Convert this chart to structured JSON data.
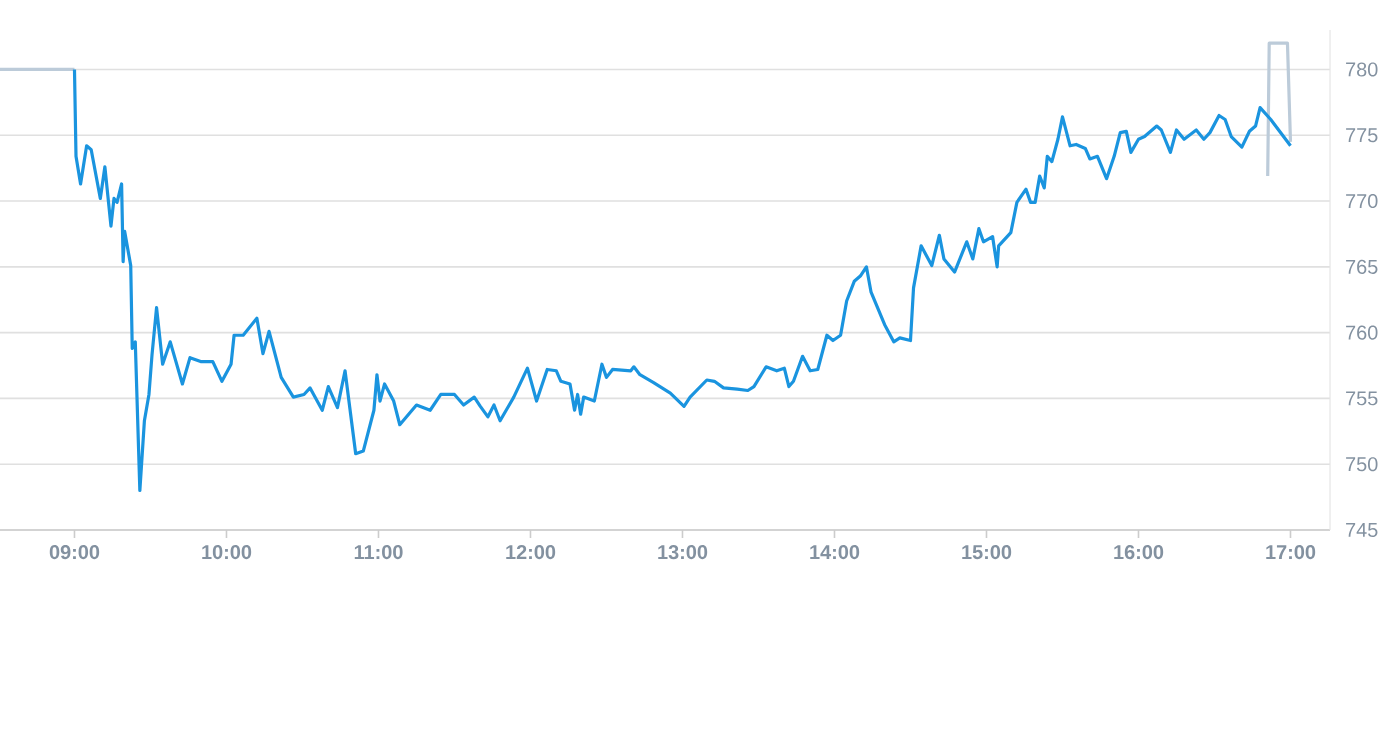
{
  "chart_data": {
    "type": "line",
    "xlim": [
      8.51,
      17.26
    ],
    "ylim": [
      745,
      783
    ],
    "xticks": [
      {
        "value": 9,
        "label": "09:00"
      },
      {
        "value": 10,
        "label": "10:00"
      },
      {
        "value": 11,
        "label": "11:00"
      },
      {
        "value": 12,
        "label": "12:00"
      },
      {
        "value": 13,
        "label": "13:00"
      },
      {
        "value": 14,
        "label": "14:00"
      },
      {
        "value": 15,
        "label": "15:00"
      },
      {
        "value": 16,
        "label": "16:00"
      },
      {
        "value": 17,
        "label": "17:00"
      }
    ],
    "yticks": [
      745,
      750,
      755,
      760,
      765,
      770,
      775,
      780
    ],
    "grid": "y",
    "series": [
      {
        "color": "#bccbd9",
        "x": [
          8.51,
          9.0,
          null,
          16.85,
          16.86,
          16.98,
          17.0
        ],
        "values": [
          780,
          780,
          null,
          771.9,
          782.0,
          782.0,
          774.5
        ]
      },
      {
        "color": "#1a94df",
        "x": [
          9.0,
          9.01,
          9.04,
          9.08,
          9.11,
          9.17,
          9.2,
          9.24,
          9.26,
          9.28,
          9.31,
          9.32,
          9.33,
          9.37,
          9.38,
          9.4,
          9.43,
          9.46,
          9.49,
          9.51,
          9.54,
          9.58,
          9.63,
          9.71,
          9.76,
          9.83,
          9.91,
          9.97,
          10.03,
          10.05,
          10.11,
          10.2,
          10.24,
          10.28,
          10.36,
          10.44,
          10.51,
          10.55,
          10.63,
          10.67,
          10.73,
          10.78,
          10.85,
          10.9,
          10.97,
          10.99,
          11.01,
          11.04,
          11.1,
          11.14,
          11.25,
          11.34,
          11.41,
          11.5,
          11.56,
          11.63,
          11.67,
          11.72,
          11.76,
          11.8,
          11.89,
          11.98,
          12.04,
          12.11,
          12.17,
          12.2,
          12.26,
          12.29,
          12.31,
          12.33,
          12.35,
          12.42,
          12.47,
          12.5,
          12.54,
          12.66,
          12.68,
          12.72,
          12.81,
          12.92,
          13.01,
          13.05,
          13.16,
          13.21,
          13.27,
          13.36,
          13.43,
          13.47,
          13.55,
          13.62,
          13.67,
          13.7,
          13.73,
          13.79,
          13.84,
          13.89,
          13.95,
          13.99,
          14.04,
          14.08,
          14.13,
          14.17,
          14.21,
          14.24,
          14.33,
          14.39,
          14.43,
          14.5,
          14.52,
          14.57,
          14.64,
          14.69,
          14.72,
          14.79,
          14.87,
          14.91,
          14.95,
          14.98,
          15.04,
          15.07,
          15.08,
          15.16,
          15.2,
          15.26,
          15.29,
          15.32,
          15.35,
          15.38,
          15.4,
          15.43,
          15.47,
          15.5,
          15.55,
          15.59,
          15.65,
          15.68,
          15.73,
          15.79,
          15.84,
          15.88,
          15.92,
          15.95,
          16.0,
          16.04,
          16.12,
          16.15,
          16.21,
          16.25,
          16.3,
          16.38,
          16.43,
          16.47,
          16.53,
          16.57,
          16.61,
          16.68,
          16.73,
          16.77,
          16.8,
          16.87,
          17.0
        ],
        "values": [
          780,
          773.4,
          771.3,
          774.2,
          773.9,
          770.2,
          772.6,
          768.1,
          770.2,
          769.9,
          771.3,
          765.4,
          767.7,
          765.1,
          758.8,
          759.3,
          748.0,
          753.3,
          755.3,
          758.3,
          761.9,
          757.6,
          759.3,
          756.1,
          758.1,
          757.8,
          757.8,
          756.3,
          757.6,
          759.8,
          759.8,
          761.1,
          758.4,
          760.1,
          756.6,
          755.1,
          755.3,
          755.8,
          754.1,
          755.9,
          754.3,
          757.1,
          750.8,
          751.0,
          754.1,
          756.8,
          754.8,
          756.1,
          754.8,
          753.0,
          754.5,
          754.1,
          755.3,
          755.3,
          754.5,
          755.1,
          754.4,
          753.6,
          754.5,
          753.3,
          755.1,
          757.3,
          754.8,
          757.2,
          757.1,
          756.3,
          756.1,
          754.1,
          755.3,
          753.8,
          755.1,
          754.8,
          757.6,
          756.6,
          757.2,
          757.1,
          757.4,
          756.8,
          756.2,
          755.4,
          754.4,
          755.1,
          756.4,
          756.3,
          755.8,
          755.7,
          755.6,
          755.9,
          757.4,
          757.1,
          757.3,
          755.9,
          756.3,
          758.2,
          757.1,
          757.2,
          759.8,
          759.4,
          759.8,
          762.4,
          763.9,
          764.3,
          765.0,
          763.1,
          760.6,
          759.3,
          759.6,
          759.4,
          763.4,
          766.6,
          765.1,
          767.4,
          765.6,
          764.6,
          766.9,
          765.6,
          767.9,
          766.9,
          767.3,
          765.0,
          766.6,
          767.6,
          769.9,
          770.9,
          769.9,
          769.9,
          771.9,
          771.0,
          773.4,
          773.0,
          774.7,
          776.4,
          774.2,
          774.3,
          774.0,
          773.2,
          773.4,
          771.7,
          773.4,
          775.2,
          775.3,
          773.7,
          774.7,
          774.9,
          775.7,
          775.4,
          773.7,
          775.4,
          774.7,
          775.4,
          774.7,
          775.2,
          776.5,
          776.2,
          774.9,
          774.1,
          775.3,
          775.7,
          777.1,
          776.2,
          774.2
        ]
      }
    ]
  }
}
